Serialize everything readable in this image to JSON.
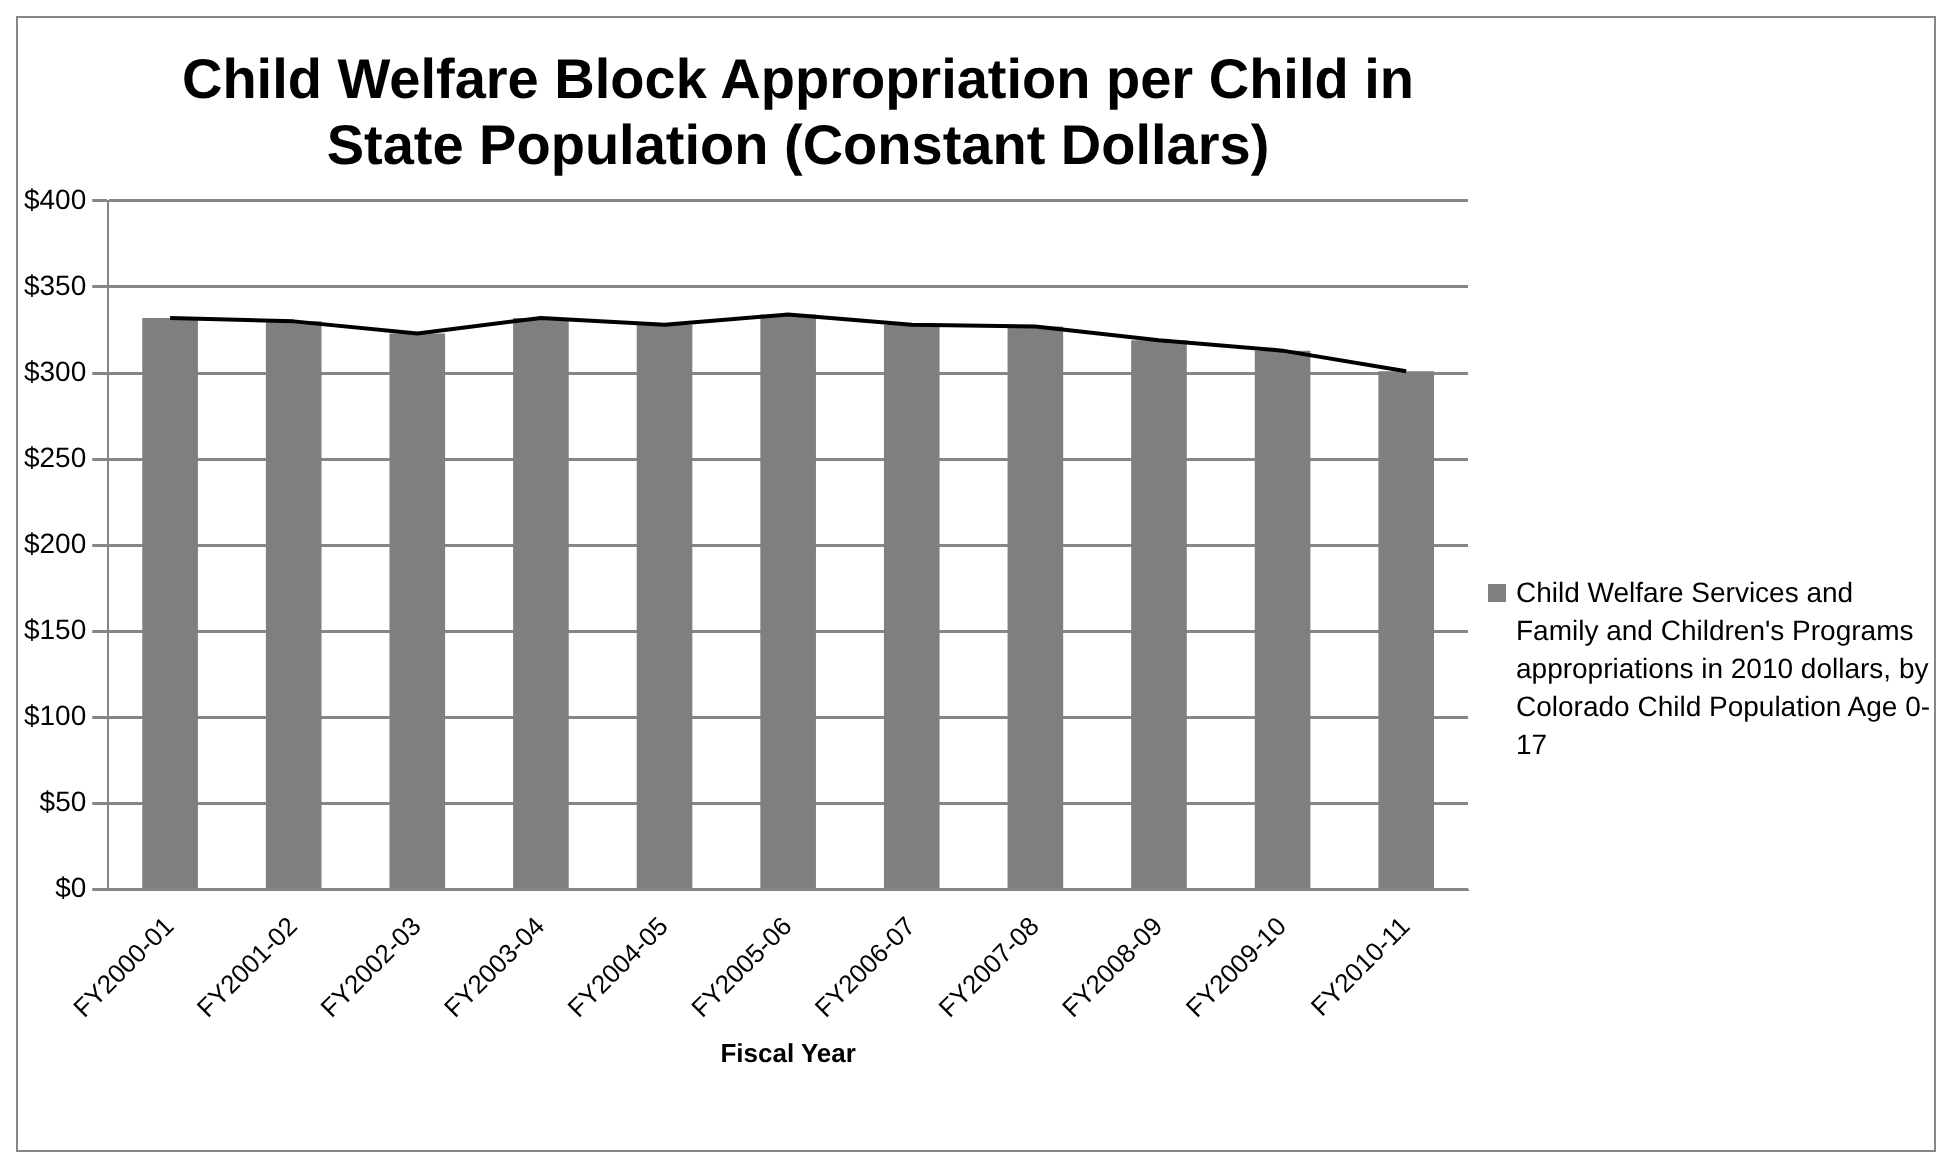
{
  "chart_data": {
    "type": "bar",
    "title": "Child Welfare Block Appropriation per Child in State Population (Constant Dollars)",
    "xlabel": "Fiscal Year",
    "categories": [
      "FY2000-01",
      "FY2001-02",
      "FY2002-03",
      "FY2003-04",
      "FY2004-05",
      "FY2005-06",
      "FY2006-07",
      "FY2007-08",
      "FY2008-09",
      "FY2009-10",
      "FY2010-11"
    ],
    "series": [
      {
        "name": "Child Welfare Services and Family and Children's Programs appropriations in 2010 dollars, by Colorado Child Population Age 0-17",
        "color": "#7f7f7f",
        "values": [
          332,
          330,
          323,
          332,
          328,
          334,
          328,
          327,
          319,
          313,
          301
        ]
      },
      {
        "type": "line",
        "color": "#000000",
        "values": [
          332,
          330,
          323,
          332,
          328,
          334,
          328,
          327,
          319,
          313,
          301
        ]
      }
    ],
    "ylim": [
      0,
      400
    ],
    "yticks": [
      {
        "value": 0,
        "label": "$0"
      },
      {
        "value": 50,
        "label": "$50"
      },
      {
        "value": 100,
        "label": "$100"
      },
      {
        "value": 150,
        "label": "$150"
      },
      {
        "value": 200,
        "label": "$200"
      },
      {
        "value": 250,
        "label": "$250"
      },
      {
        "value": 300,
        "label": "$300"
      },
      {
        "value": 350,
        "label": "$350"
      },
      {
        "value": 400,
        "label": "$400"
      }
    ],
    "grid": "y",
    "legend": "right",
    "marker": "none"
  }
}
